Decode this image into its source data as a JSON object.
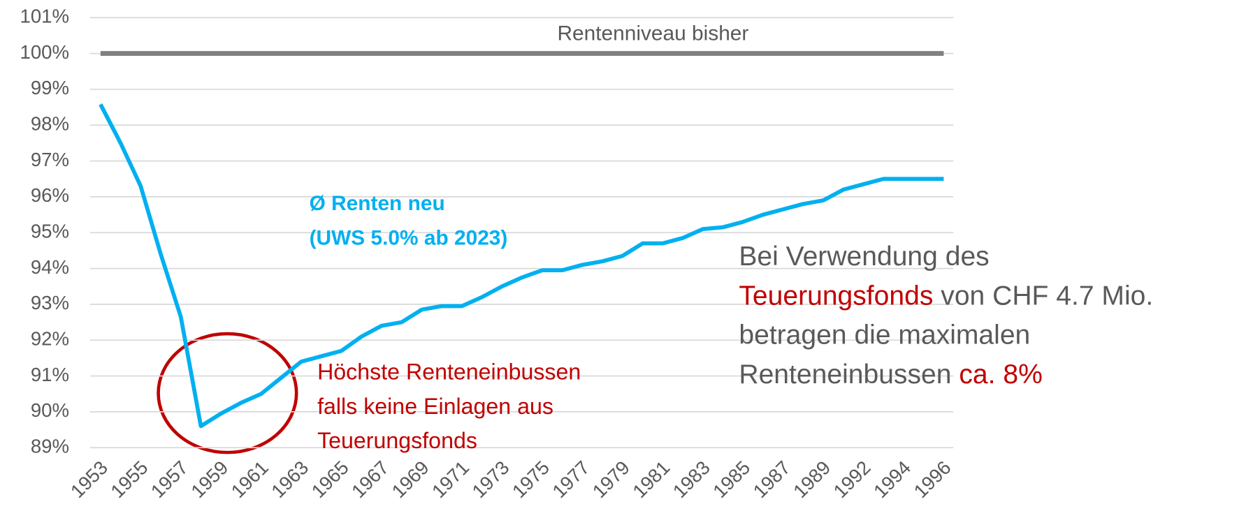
{
  "chart_data": {
    "type": "line",
    "categories": [
      "1953",
      null,
      "1955",
      null,
      "1957",
      null,
      "1959",
      null,
      "1961",
      null,
      "1963",
      null,
      "1965",
      null,
      "1967",
      null,
      "1969",
      null,
      "1971",
      null,
      "1973",
      null,
      "1975",
      null,
      "1977",
      null,
      "1979",
      null,
      "1981",
      null,
      "1983",
      null,
      "1985",
      null,
      "1987",
      null,
      "1989",
      null,
      "1992",
      null,
      "1994",
      null,
      "1996"
    ],
    "series": [
      {
        "name": "Rentenniveau bisher",
        "color": "#808080",
        "values": [
          100,
          100,
          100,
          100,
          100,
          100,
          100,
          100,
          100,
          100,
          100,
          100,
          100,
          100,
          100,
          100,
          100,
          100,
          100,
          100,
          100,
          100,
          100,
          100,
          100,
          100,
          100,
          100,
          100,
          100,
          100,
          100,
          100,
          100,
          100,
          100,
          100,
          100,
          100,
          100,
          100,
          100,
          100
        ]
      },
      {
        "name": "Ø Renten neu",
        "color": "#00b0f0",
        "values": [
          98.58,
          97.5,
          96.3,
          94.4,
          92.65,
          89.6,
          89.95,
          90.25,
          90.5,
          90.95,
          91.4,
          91.55,
          91.7,
          92.1,
          92.4,
          92.5,
          92.85,
          92.95,
          92.95,
          93.2,
          93.5,
          93.75,
          93.95,
          93.95,
          94.1,
          94.2,
          94.35,
          94.7,
          94.7,
          94.85,
          95.1,
          95.15,
          95.3,
          95.5,
          95.65,
          95.8,
          95.9,
          96.2,
          96.35,
          96.5,
          96.5,
          96.5,
          96.5
        ]
      }
    ],
    "ylim": [
      89,
      101
    ],
    "yticks": [
      {
        "value": 89,
        "label": "89%"
      },
      {
        "value": 90,
        "label": "90%"
      },
      {
        "value": 91,
        "label": "91%"
      },
      {
        "value": 92,
        "label": "92%"
      },
      {
        "value": 93,
        "label": "93%"
      },
      {
        "value": 94,
        "label": "94%"
      },
      {
        "value": 95,
        "label": "95%"
      },
      {
        "value": 96,
        "label": "96%"
      },
      {
        "value": 97,
        "label": "97%"
      },
      {
        "value": 98,
        "label": "98%"
      },
      {
        "value": 99,
        "label": "99%"
      },
      {
        "value": 100,
        "label": "100%"
      },
      {
        "value": 101,
        "label": "101%"
      }
    ],
    "grid": true,
    "annotations": [
      {
        "lines": [
          [
            {
              "text": "(UWS 5.0% ab 2023)",
              "color": "#00b0f0"
            }
          ]
        ]
      },
      {
        "lines": [
          [
            {
              "text": "Höchste Renteneinbussen",
              "color": "#c00000"
            }
          ],
          [
            {
              "text": "falls keine Einlagen aus",
              "color": "#c00000"
            }
          ],
          [
            {
              "text": "Teuerungsfonds",
              "color": "#c00000"
            }
          ]
        ]
      },
      {
        "lines": [
          [
            {
              "text": "Bei Verwendung des",
              "color": "#595959"
            }
          ],
          [
            {
              "text": "Teuerungsfonds",
              "color": "#c00000"
            },
            {
              "text": "von CHF 4.7 Mio.",
              "color": "#595959"
            }
          ],
          [
            {
              "text": "betragen die maximalen",
              "color": "#595959"
            }
          ],
          [
            {
              "text": "Renteneinbussen",
              "color": "#595959"
            },
            {
              "text": "ca. 8%",
              "color": "#c00000"
            }
          ]
        ]
      }
    ]
  }
}
